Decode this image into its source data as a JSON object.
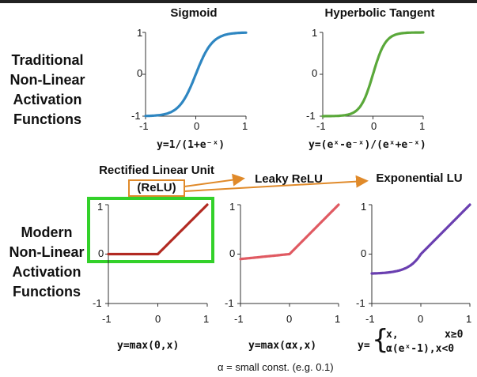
{
  "traditional": {
    "label_lines": [
      "Traditional",
      "Non-Linear",
      "Activation",
      "Functions"
    ],
    "plots": [
      {
        "title": "Sigmoid",
        "formula": "y=1/(1+e⁻ˣ)",
        "color": "#2e86c1",
        "x_ticks": [
          "-1",
          "0",
          "1"
        ],
        "y_ticks": [
          "1",
          "0",
          "-1"
        ],
        "x_range": [
          -1,
          1
        ],
        "y_range": [
          -1,
          1
        ],
        "function": "sigmoid"
      },
      {
        "title": "Hyperbolic Tangent",
        "formula": "y=(eˣ-e⁻ˣ)/(eˣ+e⁻ˣ)",
        "color": "#5aa83a",
        "x_ticks": [
          "-1",
          "0",
          "1"
        ],
        "y_ticks": [
          "1",
          "0",
          "-1"
        ],
        "x_range": [
          -1,
          1
        ],
        "y_range": [
          -1,
          1
        ],
        "function": "tanh"
      }
    ]
  },
  "modern": {
    "label_lines": [
      "Modern",
      "Non-Linear",
      "Activation",
      "Functions"
    ],
    "plots": [
      {
        "title_line1": "Rectified Linear Unit",
        "title_line2": "(ReLU)",
        "formula": "y=max(0,x)",
        "color": "#b22a22",
        "x_ticks": [
          "-1",
          "0",
          "1"
        ],
        "y_ticks": [
          "1",
          "0",
          "-1"
        ],
        "x_range": [
          -1,
          1
        ],
        "y_range": [
          -1,
          1
        ],
        "function": "relu"
      },
      {
        "title": "Leaky ReLU",
        "formula": "y=max(αx,x)",
        "color": "#e05a62",
        "x_ticks": [
          "-1",
          "0",
          "1"
        ],
        "y_ticks": [
          "1",
          "0",
          "-1"
        ],
        "x_range": [
          -1,
          1
        ],
        "y_range": [
          -1,
          1
        ],
        "function": "leaky_relu"
      },
      {
        "title": "Exponential LU",
        "formula_prefix": "y=",
        "formula_case1": "x,",
        "formula_cond1": "x≥0",
        "formula_case2": "α(eˣ-1),x<0",
        "color": "#6a3fb0",
        "x_ticks": [
          "-1",
          "0",
          "1"
        ],
        "y_ticks": [
          "1",
          "0",
          "-1"
        ],
        "x_range": [
          -1,
          1
        ],
        "y_range": [
          -1,
          1
        ],
        "function": "elu"
      }
    ],
    "alpha_note": "α = small const. (e.g. 0.1)",
    "arrow_color": "#e08a2a",
    "highlight_color": "#33d12a"
  }
}
